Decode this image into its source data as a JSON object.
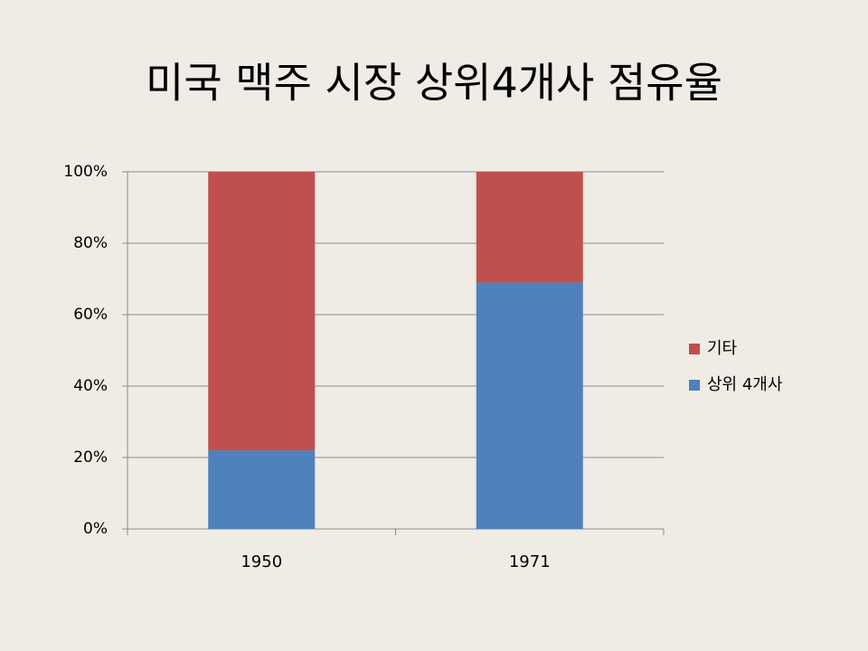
{
  "chart_data": {
    "type": "stacked_bar_percent",
    "title": "미국 맥주 시장 상위4개사 점유율",
    "categories": [
      "1950",
      "1971"
    ],
    "series": [
      {
        "name": "상위 4개사",
        "color": "#4f81bd",
        "values": [
          22,
          69
        ]
      },
      {
        "name": "기타",
        "color": "#c0504d",
        "values": [
          78,
          31
        ]
      }
    ],
    "ylim": [
      0,
      100
    ],
    "yticks": [
      {
        "value": 0,
        "label": "0%"
      },
      {
        "value": 20,
        "label": "20%"
      },
      {
        "value": 40,
        "label": "40%"
      },
      {
        "value": 60,
        "label": "60%"
      },
      {
        "value": 80,
        "label": "80%"
      },
      {
        "value": 100,
        "label": "100%"
      }
    ],
    "grid": true,
    "legend": "right"
  }
}
